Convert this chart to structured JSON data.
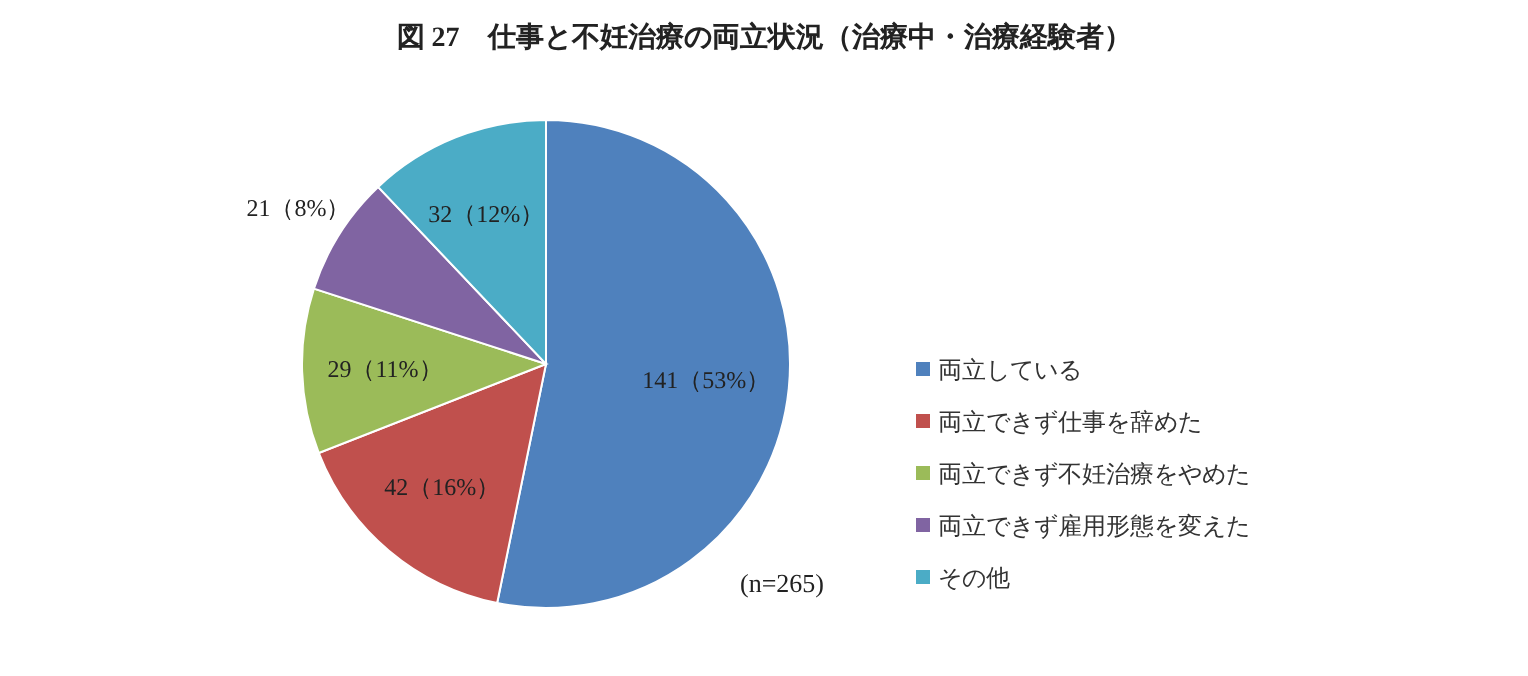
{
  "chart_data": {
    "type": "pie",
    "title": "図 27　仕事と不妊治療の両立状況（治療中・治療経験者）",
    "categories": [
      "両立している",
      "両立できず仕事を辞めた",
      "両立できず不妊治療をやめた",
      "両立できず雇用形態を変えた",
      "その他"
    ],
    "values": [
      141,
      42,
      29,
      21,
      32
    ],
    "colors": [
      "#4f81bd",
      "#c0504d",
      "#9bbb59",
      "#8064a2",
      "#4bacc6"
    ],
    "value_labels": [
      "141（53%）",
      "42（16%）",
      "29（11%）",
      "21（8%）",
      "32（12%）"
    ],
    "annotations": [
      "(n=265)"
    ],
    "legend": "right"
  }
}
